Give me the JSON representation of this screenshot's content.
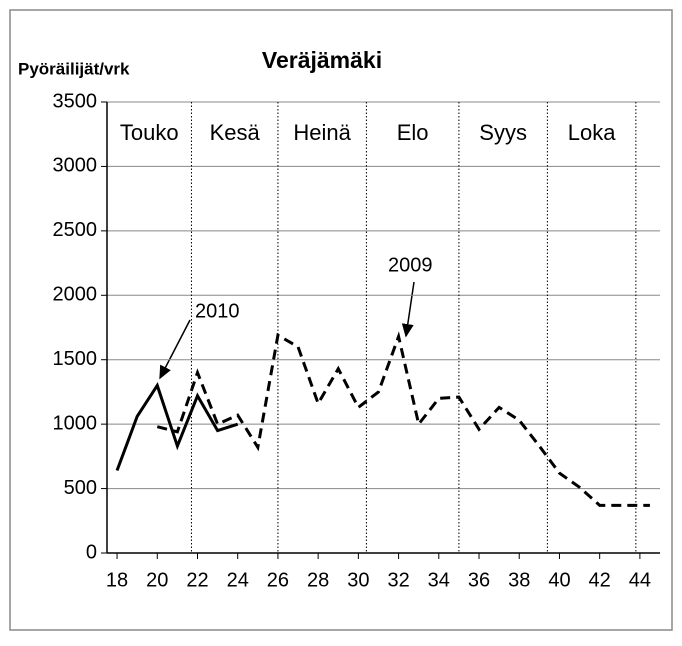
{
  "chart_data": {
    "type": "line",
    "title": "Veräjämäki",
    "ylabel": "Pyöräilijät/vrk",
    "series": [
      {
        "name": "2010",
        "color": "#000000",
        "dash": false,
        "x": [
          18,
          19,
          20,
          21,
          22,
          23,
          24
        ],
        "values": [
          640,
          1060,
          1300,
          830,
          1220,
          950,
          1000
        ]
      },
      {
        "name": "2009",
        "color": "#000000",
        "dash": true,
        "x": [
          20,
          21,
          22,
          23,
          24,
          25,
          26,
          27,
          28,
          29,
          30,
          31,
          32,
          33,
          34,
          35,
          36,
          37,
          38,
          39,
          40,
          41,
          42,
          43,
          44,
          44.5
        ],
        "values": [
          980,
          940,
          1400,
          1000,
          1070,
          820,
          1690,
          1600,
          1160,
          1430,
          1130,
          1250,
          1680,
          1000,
          1200,
          1210,
          960,
          1130,
          1030,
          830,
          620,
          510,
          370,
          370,
          370,
          370
        ]
      }
    ],
    "months": [
      "Touko",
      "Kesä",
      "Heinä",
      "Elo",
      "Syys",
      "Loka"
    ],
    "month_lines": [
      21.7,
      26.0,
      30.4,
      35.0,
      39.4,
      43.8
    ],
    "xlim": [
      17.5,
      45
    ],
    "xticks": [
      18,
      20,
      22,
      24,
      26,
      28,
      30,
      32,
      34,
      36,
      38,
      40,
      42,
      44
    ],
    "ylim": [
      0,
      3500
    ],
    "yticks": [
      0,
      500,
      1000,
      1500,
      2000,
      2500,
      3000,
      3500
    ],
    "grid": true
  }
}
